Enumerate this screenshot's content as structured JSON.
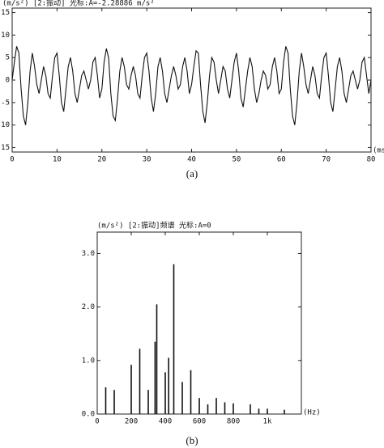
{
  "chart_data": [
    {
      "type": "line",
      "title": "(m/s²) [2:振动] 光标:A=-2.28886 m/s²",
      "xlabel": "(ms)",
      "caption": "(a)",
      "color": "#111111",
      "xlim": [
        0,
        80
      ],
      "xticks": [
        0,
        10,
        20,
        30,
        40,
        50,
        60,
        70,
        80
      ],
      "ylim": [
        -16,
        16
      ],
      "yticks": [
        -15,
        -10,
        -5,
        0,
        5,
        10,
        15
      ],
      "x": [
        0,
        0.5,
        1,
        1.5,
        2,
        2.5,
        3,
        3.5,
        4,
        4.5,
        5,
        5.5,
        6,
        6.5,
        7,
        7.5,
        8,
        8.5,
        9,
        9.5,
        10,
        10.5,
        11,
        11.5,
        12,
        12.5,
        13,
        13.5,
        14,
        14.5,
        15,
        15.5,
        16,
        16.5,
        17,
        17.5,
        18,
        18.5,
        19,
        19.5,
        20,
        20.5,
        21,
        21.5,
        22,
        22.5,
        23,
        23.5,
        24,
        24.5,
        25,
        25.5,
        26,
        26.5,
        27,
        27.5,
        28,
        28.5,
        29,
        29.5,
        30,
        30.5,
        31,
        31.5,
        32,
        32.5,
        33,
        33.5,
        34,
        34.5,
        35,
        35.5,
        36,
        36.5,
        37,
        37.5,
        38,
        38.5,
        39,
        39.5,
        40,
        40.5,
        41,
        41.5,
        42,
        42.5,
        43,
        43.5,
        44,
        44.5,
        45,
        45.5,
        46,
        46.5,
        47,
        47.5,
        48,
        48.5,
        49,
        49.5,
        50,
        50.5,
        51,
        51.5,
        52,
        52.5,
        53,
        53.5,
        54,
        54.5,
        55,
        55.5,
        56,
        56.5,
        57,
        57.5,
        58,
        58.5,
        59,
        59.5,
        60,
        60.5,
        61,
        61.5,
        62,
        62.5,
        63,
        63.5,
        64,
        64.5,
        65,
        65.5,
        66,
        66.5,
        67,
        67.5,
        68,
        68.5,
        69,
        69.5,
        70,
        70.5,
        71,
        71.5,
        72,
        72.5,
        73,
        73.5,
        74,
        74.5,
        75,
        75.5,
        76,
        76.5,
        77,
        77.5,
        78,
        78.5,
        79,
        79.5,
        80
      ],
      "values": [
        0,
        4,
        7.5,
        6,
        -2,
        -8,
        -10,
        -5,
        2,
        6,
        3,
        -1,
        -3,
        0,
        3,
        1,
        -3,
        -4,
        1,
        5,
        6,
        1,
        -5,
        -7,
        -2,
        3,
        5,
        2,
        -3,
        -5,
        -2,
        1,
        2,
        0,
        -2,
        0,
        4,
        5,
        1,
        -4,
        -2,
        4,
        7,
        5,
        -3,
        -8,
        -9,
        -4,
        2,
        5,
        3,
        -1,
        -2,
        1,
        3,
        1,
        -3,
        -4,
        1,
        5,
        6,
        2,
        -4,
        -7,
        -3,
        3,
        5,
        2,
        -3,
        -5,
        -2,
        1,
        3,
        1,
        -2,
        -1,
        3,
        5,
        2,
        -3,
        -1,
        3,
        6.5,
        6,
        -1,
        -7,
        -9.5,
        -5,
        1,
        5,
        4,
        0,
        -3,
        0,
        3,
        2,
        -2,
        -4,
        0,
        4,
        6,
        2,
        -4,
        -6,
        -2,
        2,
        5,
        3,
        -2,
        -5,
        -3,
        0,
        2,
        1,
        -2,
        -1,
        3,
        5,
        2,
        -3,
        -2,
        4,
        7.5,
        6,
        -2,
        -8,
        -10,
        -5,
        2,
        6,
        3,
        -1,
        -3,
        0,
        3,
        1,
        -3,
        -4,
        1,
        5,
        6,
        1,
        -5,
        -7,
        -2,
        3,
        5,
        2,
        -3,
        -5,
        -2,
        1,
        2,
        0,
        -2,
        0,
        4,
        5,
        1,
        -3,
        0
      ]
    },
    {
      "type": "stem",
      "title": "(m/s²) [2:振动]频谱 光标:A=0",
      "xlabel": "(Hz)",
      "caption": "(b)",
      "color": "#111111",
      "xlim": [
        0,
        1200
      ],
      "xticks": [
        0,
        200,
        400,
        600,
        800,
        {
          "value": 1000,
          "label": "1k"
        }
      ],
      "ylim": [
        0,
        3.4
      ],
      "yticks": [
        {
          "value": 0,
          "label": "0.0"
        },
        {
          "value": 1,
          "label": "1.0"
        },
        {
          "value": 2,
          "label": "2.0"
        },
        {
          "value": 3,
          "label": "3.0"
        }
      ],
      "x": [
        50,
        100,
        200,
        250,
        300,
        340,
        350,
        400,
        420,
        450,
        500,
        550,
        600,
        650,
        700,
        750,
        800,
        900,
        950,
        1000,
        1100
      ],
      "values": [
        0.5,
        0.45,
        0.92,
        1.22,
        0.45,
        1.35,
        2.05,
        0.78,
        1.05,
        2.8,
        0.6,
        0.82,
        0.3,
        0.18,
        0.3,
        0.22,
        0.2,
        0.18,
        0.1,
        0.1,
        0.08
      ]
    }
  ]
}
